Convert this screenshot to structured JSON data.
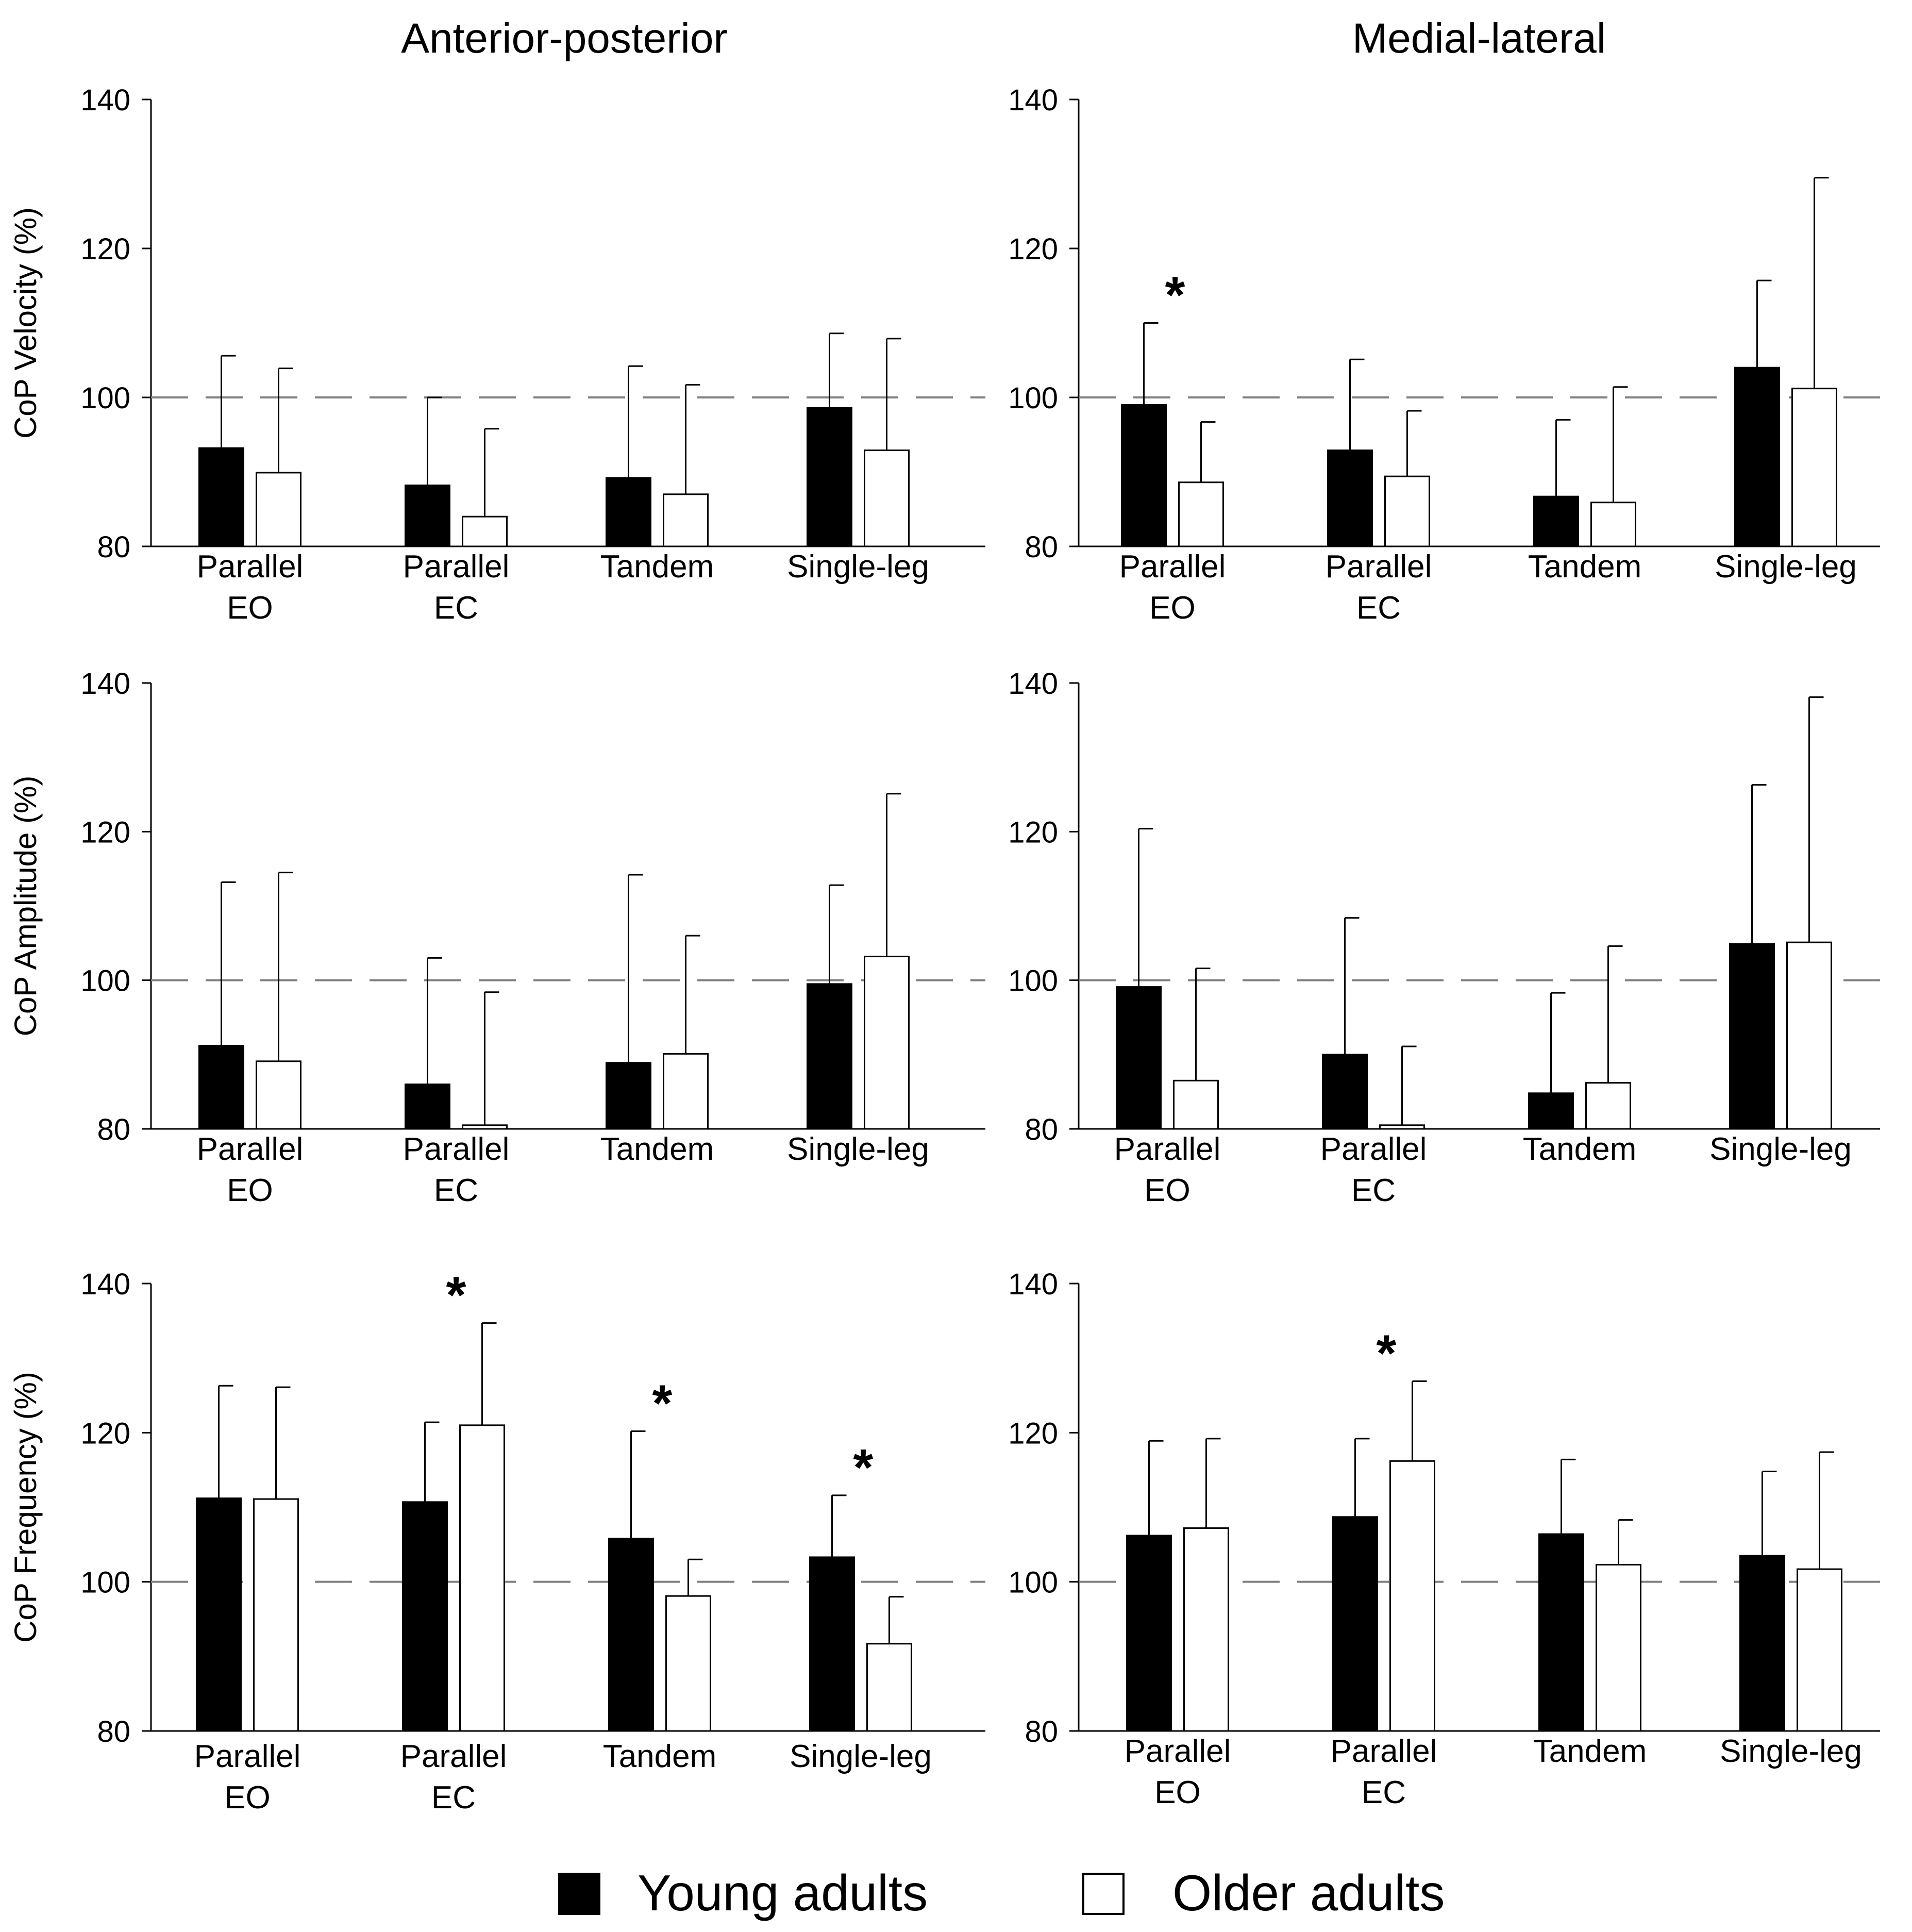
{
  "columns": [
    "Anterior-posterior",
    "Medial-lateral"
  ],
  "legend": {
    "position": "bottom",
    "items": [
      {
        "label": "Young adults",
        "color": "#000000"
      },
      {
        "label": "Older adults",
        "color": "#ffffff"
      }
    ]
  },
  "chart_data": [
    {
      "type": "bar",
      "title": "Anterior-posterior",
      "ylabel": "CoP Velocity (%)",
      "ylim": [
        80,
        140
      ],
      "yticks": [
        80,
        100,
        120,
        140
      ],
      "reference_line": 100,
      "categories": [
        [
          "Parallel",
          "EO"
        ],
        [
          "Parallel",
          "EC"
        ],
        [
          "Tandem"
        ],
        [
          "Single-leg"
        ]
      ],
      "series": [
        {
          "name": "Young adults",
          "values": [
            93.2,
            88.2,
            89.2,
            98.6
          ],
          "errors": [
            12.4,
            11.8,
            15.0,
            10.0
          ]
        },
        {
          "name": "Older adults",
          "values": [
            89.9,
            84.0,
            87.0,
            92.9
          ],
          "errors": [
            14.0,
            11.8,
            14.7,
            15.0
          ]
        }
      ],
      "significant": [
        false,
        false,
        false,
        false
      ]
    },
    {
      "type": "bar",
      "title": "Medial-lateral",
      "ylabel": "",
      "ylim": [
        80,
        140
      ],
      "yticks": [
        80,
        100,
        120,
        140
      ],
      "reference_line": 100,
      "categories": [
        [
          "Parallel",
          "EO"
        ],
        [
          "Parallel",
          "EC"
        ],
        [
          "Tandem"
        ],
        [
          "Single-leg"
        ]
      ],
      "series": [
        {
          "name": "Young adults",
          "values": [
            99.0,
            92.9,
            86.7,
            104.0
          ],
          "errors": [
            11.0,
            12.2,
            10.3,
            11.7
          ]
        },
        {
          "name": "Older adults",
          "values": [
            88.6,
            89.4,
            85.9,
            101.2
          ],
          "errors": [
            8.1,
            8.8,
            15.5,
            28.3
          ]
        }
      ],
      "significant": [
        true,
        false,
        false,
        false
      ]
    },
    {
      "type": "bar",
      "title": "",
      "ylabel": "CoP Amplitude (%)",
      "ylim": [
        80,
        140
      ],
      "yticks": [
        80,
        100,
        120,
        140
      ],
      "reference_line": 100,
      "categories": [
        [
          "Parallel",
          "EO"
        ],
        [
          "Parallel",
          "EC"
        ],
        [
          "Tandem"
        ],
        [
          "Single-leg"
        ]
      ],
      "series": [
        {
          "name": "Young adults",
          "values": [
            91.2,
            86.0,
            88.9,
            99.5
          ],
          "errors": [
            22.0,
            17.0,
            25.3,
            13.3
          ]
        },
        {
          "name": "Older adults",
          "values": [
            89.1,
            80.5,
            90.1,
            103.2
          ],
          "errors": [
            25.4,
            17.9,
            15.9,
            21.9
          ]
        }
      ],
      "significant": [
        false,
        false,
        false,
        false
      ]
    },
    {
      "type": "bar",
      "title": "",
      "ylabel": "",
      "ylim": [
        80,
        140
      ],
      "yticks": [
        80,
        100,
        120,
        140
      ],
      "reference_line": 100,
      "categories": [
        [
          "Parallel",
          "EO"
        ],
        [
          "Parallel",
          "EC"
        ],
        [
          "Tandem"
        ],
        [
          "Single-leg"
        ]
      ],
      "series": [
        {
          "name": "Young adults",
          "values": [
            99.1,
            90.0,
            84.8,
            104.9
          ],
          "errors": [
            21.3,
            18.4,
            13.5,
            21.4
          ]
        },
        {
          "name": "Older adults",
          "values": [
            86.5,
            80.5,
            86.2,
            105.1
          ],
          "errors": [
            15.1,
            10.6,
            18.4,
            33.0
          ]
        }
      ],
      "significant": [
        false,
        false,
        false,
        false
      ]
    },
    {
      "type": "bar",
      "title": "",
      "ylabel": "CoP Frequency (%)",
      "ylim": [
        80,
        140
      ],
      "yticks": [
        80,
        100,
        120,
        140
      ],
      "reference_line": 100,
      "categories": [
        [
          "Parallel",
          "EO"
        ],
        [
          "Parallel",
          "EC"
        ],
        [
          "Tandem"
        ],
        [
          "Single-leg"
        ]
      ],
      "series": [
        {
          "name": "Young adults",
          "values": [
            111.2,
            110.7,
            105.8,
            103.3
          ],
          "errors": [
            15.1,
            10.7,
            14.4,
            8.3
          ]
        },
        {
          "name": "Older adults",
          "values": [
            111.1,
            121.0,
            98.1,
            91.7
          ],
          "errors": [
            15.0,
            13.7,
            4.9,
            6.3
          ]
        }
      ],
      "significant": [
        false,
        true,
        true,
        true
      ]
    },
    {
      "type": "bar",
      "title": "",
      "ylabel": "",
      "ylim": [
        80,
        140
      ],
      "yticks": [
        80,
        100,
        120,
        140
      ],
      "reference_line": 100,
      "categories": [
        [
          "Parallel",
          "EO"
        ],
        [
          "Parallel",
          "EC"
        ],
        [
          "Tandem"
        ],
        [
          "Single-leg"
        ]
      ],
      "series": [
        {
          "name": "Young adults",
          "values": [
            106.2,
            108.7,
            106.4,
            103.5
          ],
          "errors": [
            12.7,
            10.5,
            10.0,
            11.3
          ]
        },
        {
          "name": "Older adults",
          "values": [
            107.2,
            116.2,
            102.3,
            101.7
          ],
          "errors": [
            12.0,
            10.7,
            6.0,
            15.7
          ]
        }
      ],
      "significant": [
        false,
        true,
        false,
        false
      ]
    }
  ]
}
